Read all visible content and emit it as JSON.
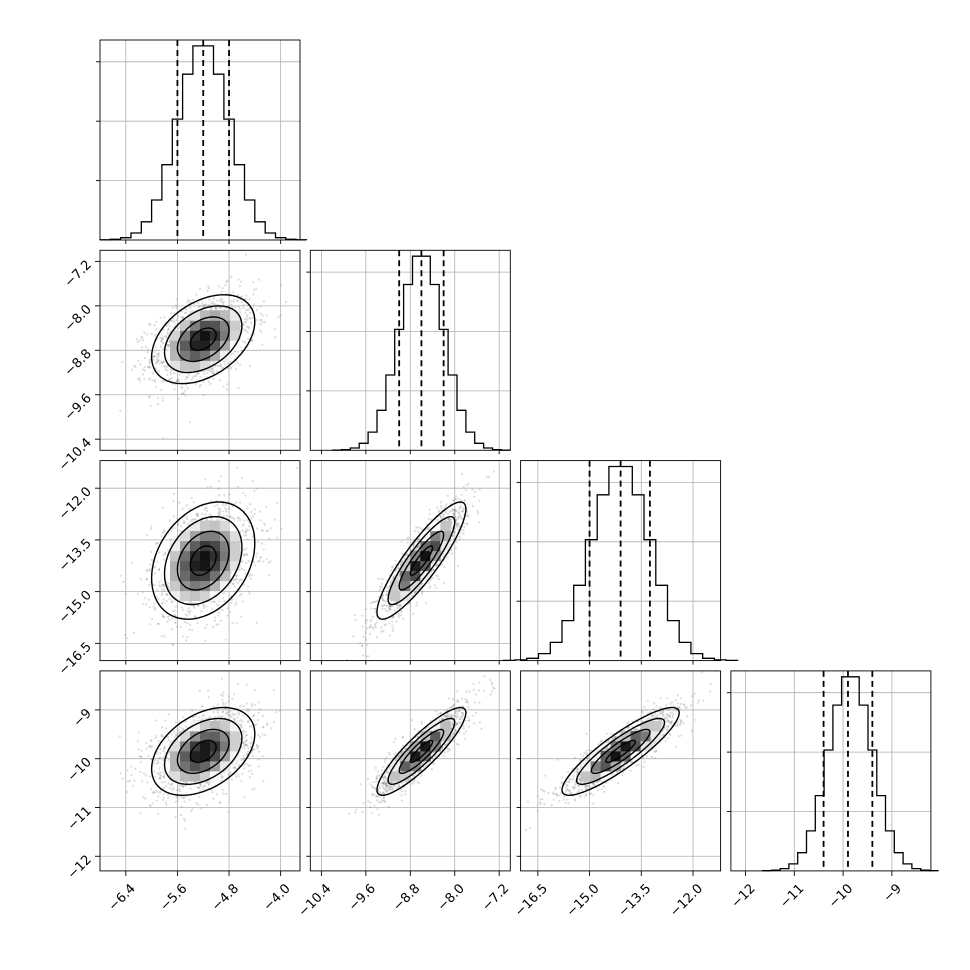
{
  "chart_data": {
    "type": "scatter",
    "subtype": "corner-plot",
    "n_params": 4,
    "grid": true,
    "colors": {
      "contour": "#000000",
      "scatter": "#808080",
      "histogram": "#000000",
      "grid": "#b0b0b0"
    },
    "params": [
      {
        "range": [
          -6.8,
          -3.7
        ],
        "mean": -5.2,
        "std": 0.4,
        "quantiles": [
          -5.6,
          -5.2,
          -4.8
        ],
        "ticks": [
          -6.4,
          -5.6,
          -4.8,
          -4.0
        ],
        "tick_labels": [
          "−6.4",
          "−5.6",
          "−4.8",
          "−4.0"
        ]
      },
      {
        "range": [
          -10.6,
          -7.0
        ],
        "mean": -8.6,
        "std": 0.4,
        "quantiles": [
          -9.0,
          -8.6,
          -8.2
        ],
        "ticks": [
          -10.4,
          -9.6,
          -8.8,
          -8.0,
          -7.2
        ],
        "tick_labels": [
          "−10.4",
          "−9.6",
          "−8.8",
          "−8.0",
          "−7.2"
        ]
      },
      {
        "range": [
          -17.0,
          -11.2
        ],
        "mean": -14.1,
        "std": 0.85,
        "quantiles": [
          -15.0,
          -14.1,
          -13.25
        ],
        "ticks": [
          -16.5,
          -15.0,
          -13.5,
          -12.0
        ],
        "tick_labels": [
          "−16.5",
          "−15.0",
          "−13.5",
          "−12.0"
        ]
      },
      {
        "range": [
          -12.3,
          -8.2
        ],
        "mean": -9.85,
        "std": 0.45,
        "quantiles": [
          -10.4,
          -9.9,
          -9.4
        ],
        "ticks": [
          -12,
          -11,
          -10,
          -9
        ],
        "tick_labels": [
          "−12",
          "−11",
          "−10",
          "−9"
        ]
      }
    ],
    "correlations": [
      [
        1.0,
        0.4,
        0.3,
        0.4
      ],
      [
        0.4,
        1.0,
        0.88,
        0.88
      ],
      [
        0.3,
        0.88,
        1.0,
        0.88
      ],
      [
        0.4,
        0.88,
        0.88,
        1.0
      ]
    ],
    "contour_levels_sigma": [
      0.5,
      1.0,
      1.5,
      2.0
    ],
    "histogram_bins": 20
  }
}
